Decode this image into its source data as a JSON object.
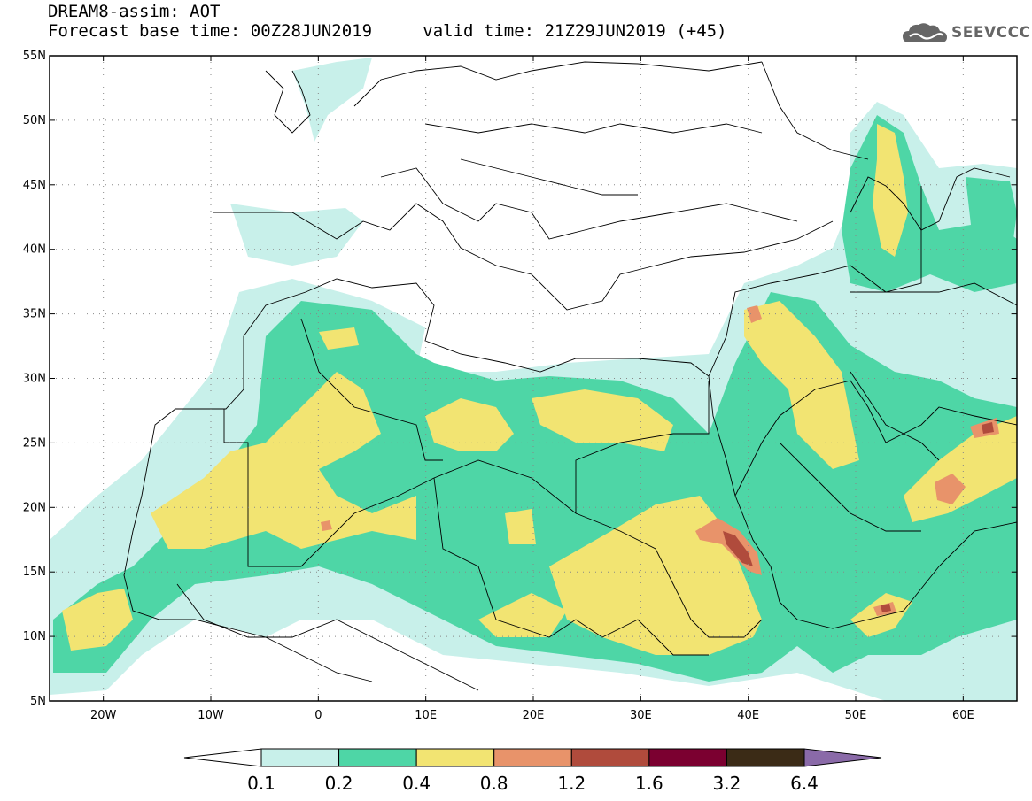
{
  "title": {
    "line1": "DREAM8-assim: AOT",
    "base_label": "Forecast base time:",
    "base_time": "00Z28JUN2019",
    "valid_label": "valid time:",
    "valid_time": "21Z29JUN2019",
    "lead": "(+45)"
  },
  "logo": {
    "text": "SEEVCCC",
    "icon": "cloud-icon"
  },
  "map": {
    "projection": "equirectangular",
    "extent": {
      "lon_min": -25,
      "lon_max": 65,
      "lat_min": 5,
      "lat_max": 55
    },
    "grid": "dotted",
    "lat_ticks": [
      {
        "value": 55,
        "label": "55N"
      },
      {
        "value": 50,
        "label": "50N"
      },
      {
        "value": 45,
        "label": "45N"
      },
      {
        "value": 40,
        "label": "40N"
      },
      {
        "value": 35,
        "label": "35N"
      },
      {
        "value": 30,
        "label": "30N"
      },
      {
        "value": 25,
        "label": "25N"
      },
      {
        "value": 20,
        "label": "20N"
      },
      {
        "value": 15,
        "label": "15N"
      },
      {
        "value": 10,
        "label": "10N"
      },
      {
        "value": 5,
        "label": "5N"
      }
    ],
    "lon_ticks": [
      {
        "value": -20,
        "label": "20W"
      },
      {
        "value": -10,
        "label": "10W"
      },
      {
        "value": 0,
        "label": "0"
      },
      {
        "value": 10,
        "label": "10E"
      },
      {
        "value": 20,
        "label": "20E"
      },
      {
        "value": 30,
        "label": "30E"
      },
      {
        "value": 40,
        "label": "40E"
      },
      {
        "value": 50,
        "label": "50E"
      },
      {
        "value": 60,
        "label": "60E"
      }
    ]
  },
  "colorbar": {
    "colors": [
      "#c8f0ea",
      "#4ed6a6",
      "#f2e472",
      "#e8936a",
      "#b04b3c",
      "#7b0030",
      "#3b2b16",
      "#8a6aa8"
    ],
    "labels": [
      "0.1",
      "0.2",
      "0.4",
      "0.8",
      "1.2",
      "1.6",
      "3.2",
      "6.4"
    ]
  }
}
